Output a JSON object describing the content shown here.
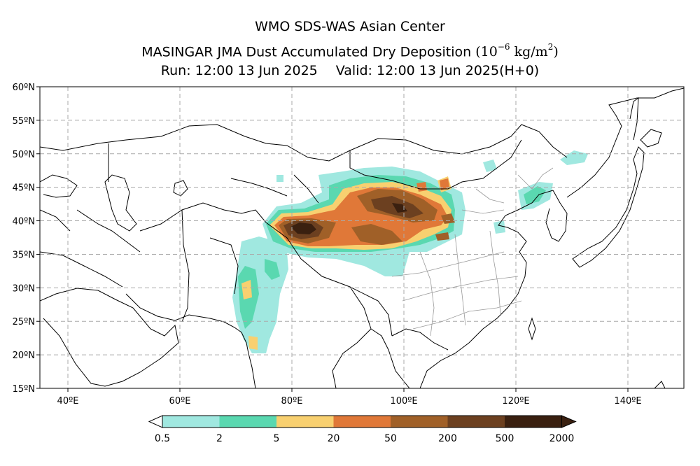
{
  "header": {
    "center": "WMO SDS-WAS Asian Center",
    "title_main": "MASINGAR JMA Dust Accumulated Dry Deposition",
    "unit_base": "10",
    "unit_exp": "−6",
    "unit_suffix": "kg/m",
    "unit_sq": "2",
    "run": "Run: 12:00 13 Jun 2025",
    "valid": "Valid: 12:00 13 Jun 2025(H+0)"
  },
  "map": {
    "lon_range": [
      35,
      150
    ],
    "lat_range": [
      15,
      60
    ],
    "lat_ticks": [
      "15ºN",
      "20ºN",
      "25ºN",
      "30ºN",
      "35ºN",
      "40ºN",
      "45ºN",
      "50ºN",
      "55ºN",
      "60ºN"
    ],
    "lon_ticks": [
      "40ºE",
      "60ºE",
      "80ºE",
      "100ºE",
      "120ºE",
      "140ºE"
    ],
    "grid": true
  },
  "colorbar": {
    "levels": [
      "0.5",
      "2",
      "5",
      "20",
      "50",
      "200",
      "500",
      "2000"
    ],
    "colors": [
      "#a0e8e0",
      "#5ad8b0",
      "#f8d070",
      "#e07838",
      "#a06028",
      "#6c4020",
      "#3a2010"
    ],
    "extend": "both"
  }
}
